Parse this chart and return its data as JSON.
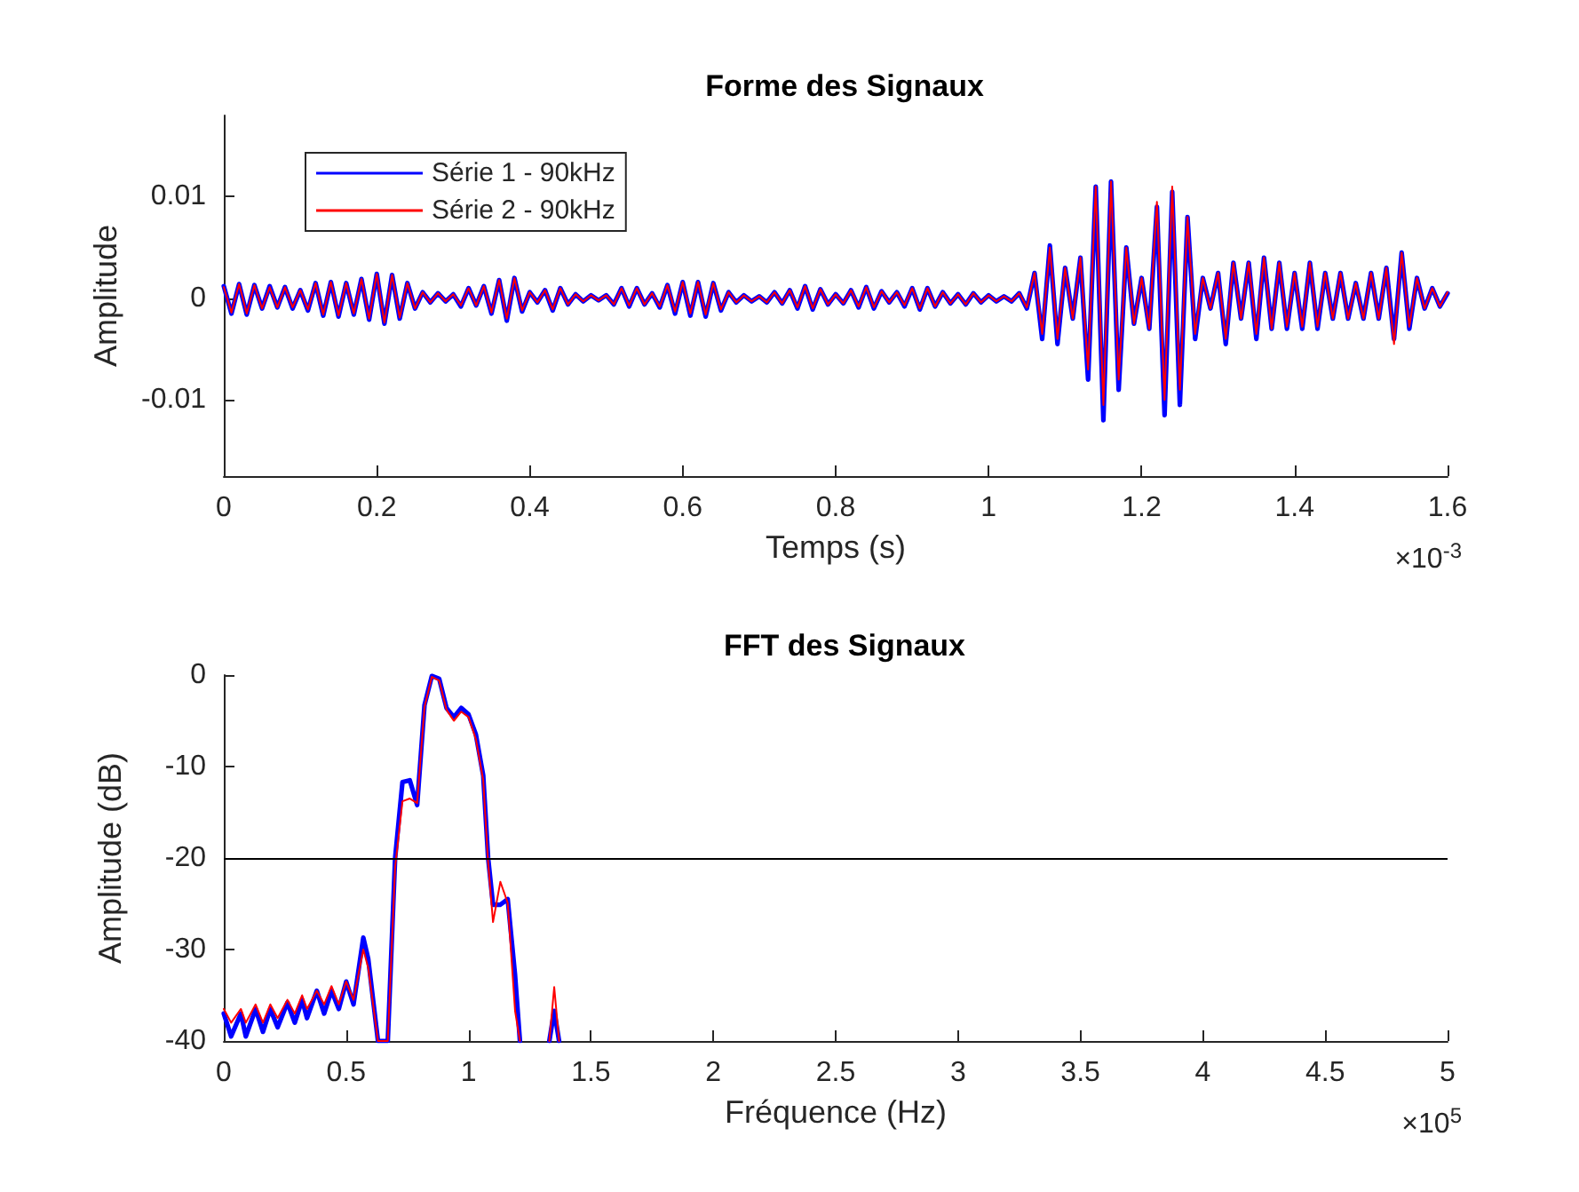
{
  "chart_data": [
    {
      "type": "line",
      "title": "Forme des Signaux",
      "xlabel": "Temps (s)",
      "ylabel": "Amplitude",
      "annotations": [
        "×10$^{-3}$"
      ],
      "x": [
        0,
        0.01,
        0.02,
        0.03,
        0.04,
        0.05,
        0.06,
        0.07,
        0.08,
        0.09,
        0.1,
        0.11,
        0.12,
        0.13,
        0.14,
        0.15,
        0.16,
        0.17,
        0.18,
        0.19,
        0.2,
        0.21,
        0.22,
        0.23,
        0.24,
        0.25,
        0.26,
        0.27,
        0.28,
        0.29,
        0.3,
        0.31,
        0.32,
        0.33,
        0.34,
        0.35,
        0.36,
        0.37,
        0.38,
        0.39,
        0.4,
        0.41,
        0.42,
        0.43,
        0.44,
        0.45,
        0.46,
        0.47,
        0.48,
        0.49,
        0.5,
        0.51,
        0.52,
        0.53,
        0.54,
        0.55,
        0.56,
        0.57,
        0.58,
        0.59,
        0.6,
        0.61,
        0.62,
        0.63,
        0.64,
        0.65,
        0.66,
        0.67,
        0.68,
        0.69,
        0.7,
        0.71,
        0.72,
        0.73,
        0.74,
        0.75,
        0.76,
        0.77,
        0.78,
        0.79,
        0.8,
        0.81,
        0.82,
        0.83,
        0.84,
        0.85,
        0.86,
        0.87,
        0.88,
        0.89,
        0.9,
        0.91,
        0.92,
        0.93,
        0.94,
        0.95,
        0.96,
        0.97,
        0.98,
        0.99,
        1,
        1.01,
        1.02,
        1.03,
        1.04,
        1.05,
        1.06,
        1.07,
        1.08,
        1.09,
        1.1,
        1.11,
        1.12,
        1.13,
        1.14,
        1.15,
        1.16,
        1.17,
        1.18,
        1.19,
        1.2,
        1.21,
        1.22,
        1.23,
        1.24,
        1.25,
        1.26,
        1.27,
        1.28,
        1.29,
        1.3,
        1.31,
        1.32,
        1.33,
        1.34,
        1.35,
        1.36,
        1.37,
        1.38,
        1.39,
        1.4,
        1.41,
        1.42,
        1.43,
        1.44,
        1.45,
        1.46,
        1.47,
        1.48,
        1.49,
        1.5,
        1.51,
        1.52,
        1.53,
        1.54,
        1.55,
        1.56,
        1.57,
        1.58,
        1.59,
        1.6
      ],
      "series": [
        {
          "name": "Série 1 - 90kHz",
          "color": "#0000ff",
          "values": [
            0.0012,
            -0.0015,
            0.0014,
            -0.0016,
            0.0013,
            -0.001,
            0.0012,
            -0.0009,
            0.0011,
            -0.001,
            0.0008,
            -0.0012,
            0.0015,
            -0.0017,
            0.0016,
            -0.0018,
            0.0015,
            -0.0016,
            0.0019,
            -0.0021,
            0.0024,
            -0.0025,
            0.0023,
            -0.002,
            0.0015,
            -0.001,
            0.0006,
            -0.0004,
            0.0005,
            -0.0003,
            0.0004,
            -0.0008,
            0.001,
            -0.0007,
            0.0012,
            -0.0015,
            0.0018,
            -0.0022,
            0.002,
            -0.0013,
            0.0006,
            -0.0004,
            0.0008,
            -0.0012,
            0.001,
            -0.0006,
            0.0004,
            -0.0003,
            0.0003,
            -0.0002,
            0.0003,
            -0.0006,
            0.001,
            -0.0008,
            0.001,
            -0.0006,
            0.0005,
            -0.0009,
            0.0013,
            -0.0015,
            0.0016,
            -0.0017,
            0.0016,
            -0.0018,
            0.0015,
            -0.0012,
            0.0006,
            -0.0004,
            0.0003,
            -0.0003,
            0.0002,
            -0.0004,
            0.0006,
            -0.0005,
            0.0008,
            -0.001,
            0.0012,
            -0.0011,
            0.0009,
            -0.0006,
            0.0004,
            -0.0005,
            0.0008,
            -0.0009,
            0.0011,
            -0.001,
            0.0007,
            -0.0004,
            0.0006,
            -0.0008,
            0.001,
            -0.0011,
            0.001,
            -0.0008,
            0.0006,
            -0.0005,
            0.0004,
            -0.0006,
            0.0005,
            -0.0004,
            0.0003,
            -0.0003,
            0.0002,
            -0.0003,
            0.0005,
            -0.001,
            0.0025,
            -0.004,
            0.0052,
            -0.0045,
            0.003,
            -0.002,
            0.004,
            -0.008,
            0.011,
            -0.012,
            0.0115,
            -0.009,
            0.005,
            -0.0025,
            0.002,
            -0.003,
            0.009,
            -0.0115,
            0.0105,
            -0.0105,
            0.008,
            -0.004,
            0.002,
            -0.001,
            0.0025,
            -0.0045,
            0.0035,
            -0.002,
            0.0035,
            -0.004,
            0.004,
            -0.003,
            0.0035,
            -0.003,
            0.0025,
            -0.003,
            0.0035,
            -0.003,
            0.0025,
            -0.002,
            0.0025,
            -0.002,
            0.0015,
            -0.002,
            0.0025,
            -0.002,
            0.003,
            -0.004,
            0.0045,
            -0.003,
            0.002,
            -0.001,
            0.001,
            -0.0008,
            0.0005
          ]
        },
        {
          "name": "Série 2 - 90kHz",
          "color": "#ff0000",
          "values": [
            0.0011,
            -0.0014,
            0.0014,
            -0.0015,
            0.0013,
            -0.001,
            0.0011,
            -0.0009,
            0.0011,
            -0.0009,
            0.0008,
            -0.0011,
            0.0015,
            -0.0016,
            0.0016,
            -0.0017,
            0.0015,
            -0.0015,
            0.0019,
            -0.002,
            0.0024,
            -0.0024,
            0.0023,
            -0.0019,
            0.0015,
            -0.001,
            0.0006,
            -0.0004,
            0.0005,
            -0.0003,
            0.0004,
            -0.0007,
            0.001,
            -0.0007,
            0.0012,
            -0.0014,
            0.0018,
            -0.002,
            0.002,
            -0.0012,
            0.0006,
            -0.0004,
            0.0008,
            -0.0011,
            0.001,
            -0.0006,
            0.0004,
            -0.0003,
            0.0003,
            -0.0002,
            0.0003,
            -0.0006,
            0.001,
            -0.0007,
            0.001,
            -0.0006,
            0.0005,
            -0.0008,
            0.0013,
            -0.0013,
            0.0016,
            -0.0015,
            0.0016,
            -0.0016,
            0.0015,
            -0.0011,
            0.0006,
            -0.0004,
            0.0003,
            -0.0003,
            0.0002,
            -0.0004,
            0.0006,
            -0.0005,
            0.0008,
            -0.0009,
            0.0012,
            -0.001,
            0.0009,
            -0.0006,
            0.0004,
            -0.0005,
            0.0008,
            -0.0008,
            0.0011,
            -0.0009,
            0.0007,
            -0.0004,
            0.0006,
            -0.0007,
            0.001,
            -0.001,
            0.001,
            -0.0008,
            0.0006,
            -0.0005,
            0.0004,
            -0.0006,
            0.0005,
            -0.0004,
            0.0003,
            -0.0003,
            0.0002,
            -0.0003,
            0.0005,
            -0.0009,
            0.0025,
            -0.0035,
            0.005,
            -0.004,
            0.003,
            -0.002,
            0.004,
            -0.007,
            0.011,
            -0.0105,
            0.0115,
            -0.008,
            0.005,
            -0.0025,
            0.002,
            -0.003,
            0.0095,
            -0.01,
            0.011,
            -0.009,
            0.008,
            -0.0035,
            0.002,
            -0.001,
            0.0025,
            -0.004,
            0.0035,
            -0.002,
            0.0035,
            -0.0035,
            0.004,
            -0.003,
            0.0035,
            -0.0028,
            0.0025,
            -0.0028,
            0.0035,
            -0.0028,
            0.0025,
            -0.002,
            0.0025,
            -0.002,
            0.0015,
            -0.002,
            0.0025,
            -0.002,
            0.003,
            -0.0045,
            0.0045,
            -0.0028,
            0.002,
            -0.001,
            0.001,
            -0.0008,
            0.0006
          ]
        }
      ],
      "xlim": [
        0,
        1.6
      ],
      "xticks": [
        0,
        0.2,
        0.4,
        0.6,
        0.8,
        1,
        1.2,
        1.4,
        1.6
      ],
      "ylim": [
        -0.0175,
        0.018
      ],
      "yticks": [
        -0.01,
        0,
        0.01
      ],
      "legend": "top left",
      "marker": "none",
      "grid": false
    },
    {
      "type": "line",
      "title": "FFT des Signaux",
      "xlabel": "Fréquence (Hz)",
      "ylabel": "Amplitude (dB)",
      "annotations": [
        "×10$^{5}$"
      ],
      "x": [
        0,
        0.03,
        0.07,
        0.09,
        0.13,
        0.16,
        0.19,
        0.22,
        0.26,
        0.29,
        0.32,
        0.34,
        0.38,
        0.41,
        0.44,
        0.47,
        0.5,
        0.53,
        0.57,
        0.59,
        0.63,
        0.67,
        0.7,
        0.73,
        0.76,
        0.79,
        0.82,
        0.85,
        0.88,
        0.91,
        0.94,
        0.97,
        1,
        1.03,
        1.06,
        1.08,
        1.1,
        1.13,
        1.16,
        1.19,
        1.21,
        1.27,
        1.33,
        1.35,
        1.37
      ],
      "series": [
        {
          "color": "#0000ff",
          "values": [
            -37,
            -39.5,
            -37,
            -39.5,
            -36.5,
            -39,
            -36.5,
            -38.5,
            -35.8,
            -38,
            -35.5,
            -37.5,
            -34.5,
            -37,
            -34.5,
            -36.5,
            -33.5,
            -36,
            -28.7,
            -31,
            -40,
            -40,
            -20,
            -11.7,
            -11.5,
            -14.2,
            -3.3,
            -0.1,
            -0.4,
            -3.6,
            -4.6,
            -3.6,
            -4.3,
            -6.5,
            -11,
            -20,
            -25.1,
            -25.1,
            -24.5,
            -32.8,
            -40,
            null,
            -40,
            -36.7,
            -40
          ]
        },
        {
          "color": "#ff0000",
          "values": [
            -36.5,
            -38,
            -36.5,
            -38,
            -36,
            -38,
            -36,
            -37.5,
            -35.5,
            -37,
            -35,
            -36.5,
            -34.5,
            -36,
            -34,
            -36,
            -33.5,
            -35.5,
            -30,
            -32,
            -40,
            -40,
            -21,
            -13.8,
            -13.5,
            -14,
            -3.5,
            -0.2,
            -0.6,
            -3.8,
            -5,
            -4,
            -4.6,
            -7,
            -11.5,
            -20.5,
            -27,
            -22.6,
            -24.9,
            -36.7,
            -40,
            null,
            -40,
            -34.1,
            -40
          ]
        }
      ],
      "xlim": [
        0,
        5
      ],
      "xticks": [
        0,
        0.5,
        1,
        1.5,
        2,
        2.5,
        3,
        3.5,
        4,
        4.5,
        5
      ],
      "ylim": [
        -40,
        0
      ],
      "yticks": [
        -40,
        -30,
        -20,
        -10,
        0
      ],
      "ref_lines": [
        {
          "axis": "y",
          "value": -20,
          "color": "#000000"
        }
      ],
      "marker": "none",
      "grid": false
    }
  ]
}
